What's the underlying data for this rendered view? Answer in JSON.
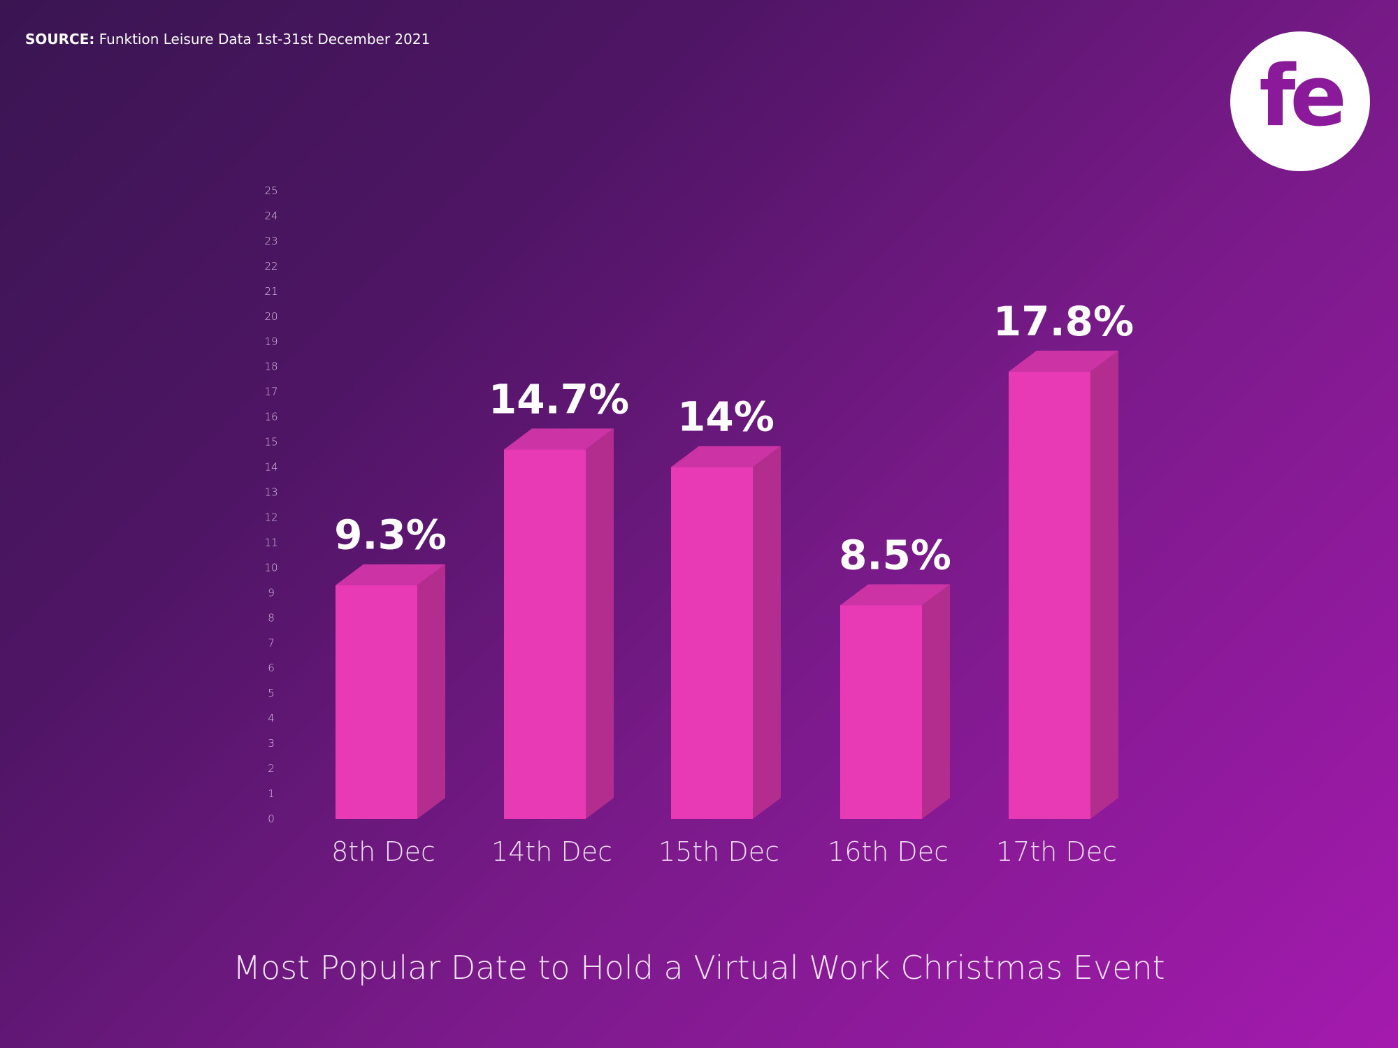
{
  "source": {
    "label": "SOURCE:",
    "text": "Funktion Leisure Data 1st-31st December 2021"
  },
  "logo": {
    "text": "fe"
  },
  "colors": {
    "bar_front": "#e83ab5",
    "bar_side": "#b32d8e",
    "bar_top": "#cc34a6",
    "background_start": "#3a1552",
    "background_end": "#a41aae"
  },
  "chart_data": {
    "type": "bar",
    "title": "Most Popular Date to Hold a Virtual Work Christmas Event",
    "categories": [
      "8th Dec",
      "14th Dec",
      "15th Dec",
      "16th Dec",
      "17th Dec"
    ],
    "values": [
      9.3,
      14.7,
      14,
      8.5,
      17.8
    ],
    "data_labels": [
      "9.3%",
      "14.7%",
      "14%",
      "8.5%",
      "17.8%"
    ],
    "ylim": [
      0,
      25
    ],
    "yticks": [
      0,
      1,
      2,
      3,
      4,
      5,
      6,
      7,
      8,
      9,
      10,
      11,
      12,
      13,
      14,
      15,
      16,
      17,
      18,
      19,
      20,
      21,
      22,
      23,
      24,
      25
    ],
    "grid": false,
    "style": "3d-bars"
  }
}
